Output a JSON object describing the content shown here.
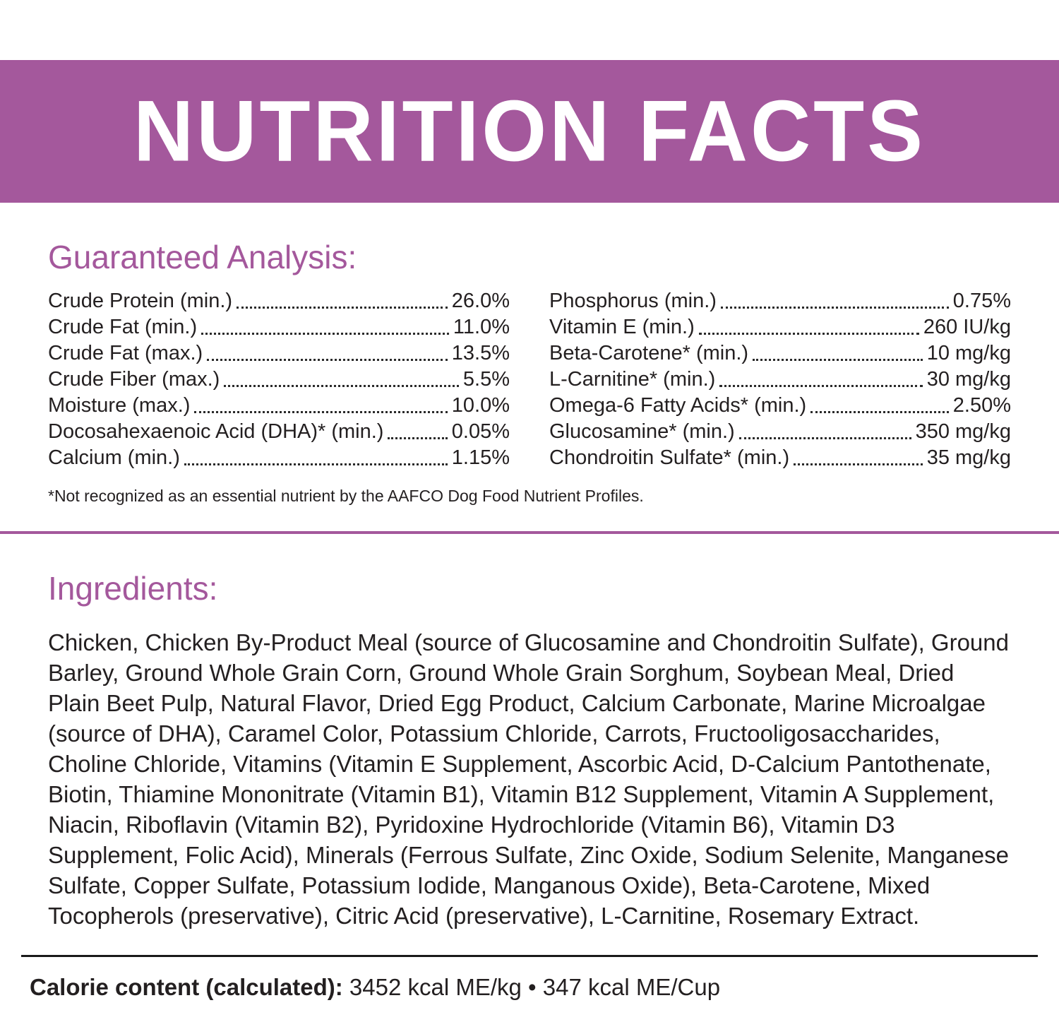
{
  "header": {
    "title": "NUTRITION FACTS"
  },
  "guaranteed_analysis": {
    "heading": "Guaranteed Analysis:",
    "left_column": [
      {
        "label": "Crude Protein (min.)",
        "value": "26.0%"
      },
      {
        "label": "Crude Fat (min.)",
        "value": "11.0%"
      },
      {
        "label": "Crude Fat (max.)",
        "value": "13.5%"
      },
      {
        "label": "Crude Fiber (max.)",
        "value": "5.5%"
      },
      {
        "label": "Moisture (max.)",
        "value": "10.0%"
      },
      {
        "label": "Docosahexaenoic Acid (DHA)* (min.)",
        "value": "0.05%"
      },
      {
        "label": "Calcium (min.)",
        "value": "1.15%"
      }
    ],
    "right_column": [
      {
        "label": "Phosphorus (min.)",
        "value": "0.75%"
      },
      {
        "label": "Vitamin E (min.)",
        "value": "260 IU/kg"
      },
      {
        "label": "Beta-Carotene* (min.)",
        "value": "10 mg/kg"
      },
      {
        "label": "L-Carnitine* (min.)",
        "value": "30 mg/kg"
      },
      {
        "label": "Omega-6 Fatty Acids* (min.)",
        "value": "2.50%"
      },
      {
        "label": "Glucosamine* (min.)",
        "value": "350 mg/kg"
      },
      {
        "label": "Chondroitin Sulfate* (min.)",
        "value": "35 mg/kg"
      }
    ],
    "footnote": "*Not recognized as an essential nutrient by the AAFCO Dog Food Nutrient Profiles."
  },
  "ingredients": {
    "heading": "Ingredients:",
    "text": "Chicken, Chicken By-Product Meal (source of Glucosamine and Chondroitin Sulfate), Ground Barley, Ground Whole Grain Corn, Ground Whole Grain Sorghum, Soybean Meal, Dried Plain Beet Pulp, Natural Flavor, Dried Egg Product, Calcium Carbonate, Marine Microalgae (source of DHA), Caramel Color, Potassium Chloride, Carrots, Fructooligosaccharides, Choline Chloride, Vitamins (Vitamin E Supplement, Ascorbic Acid, D-Calcium Pantothenate, Biotin, Thiamine Mononitrate (Vitamin B1), Vitamin B12 Supplement, Vitamin A Supplement, Niacin, Riboflavin (Vitamin B2), Pyridoxine Hydrochloride (Vitamin B6), Vitamin D3 Supplement, Folic Acid), Minerals (Ferrous Sulfate, Zinc Oxide, Sodium Selenite, Manganese Sulfate, Copper Sulfate, Potassium Iodide, Manganous Oxide), Beta-Carotene, Mixed Tocopherols (preservative), Citric Acid (preservative), L-Carnitine, Rosemary Extract."
  },
  "calorie_content": {
    "label": "Calorie content (calculated):",
    "value": "3452 kcal ME/kg • 347 kcal ME/Cup"
  },
  "colors": {
    "accent_purple": "#a4589c",
    "text_dark": "#231f20"
  }
}
